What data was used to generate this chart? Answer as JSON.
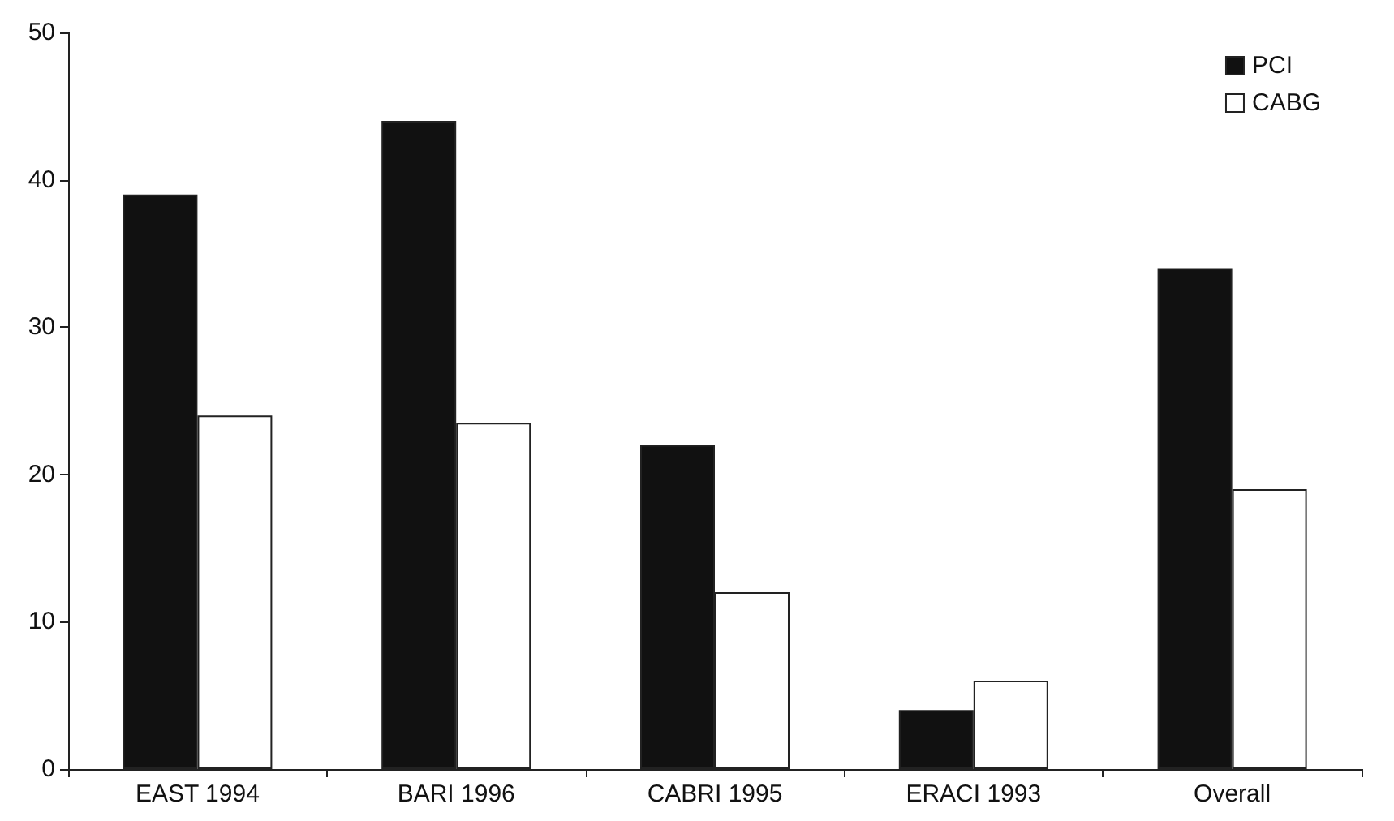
{
  "chart_data": {
    "type": "bar",
    "categories": [
      "EAST 1994",
      "BARI 1996",
      "CABRI 1995",
      "ERACI 1993",
      "Overall"
    ],
    "series": [
      {
        "name": "PCI",
        "color": "#111111",
        "values": [
          39,
          44,
          22,
          4,
          34
        ]
      },
      {
        "name": "CABG",
        "color": "#ffffff",
        "values": [
          24,
          23.5,
          12,
          6,
          19
        ]
      }
    ],
    "ylim": [
      0,
      50
    ],
    "yticks": [
      0,
      10,
      20,
      30,
      40,
      50
    ],
    "grid": false,
    "legend": "top right"
  }
}
